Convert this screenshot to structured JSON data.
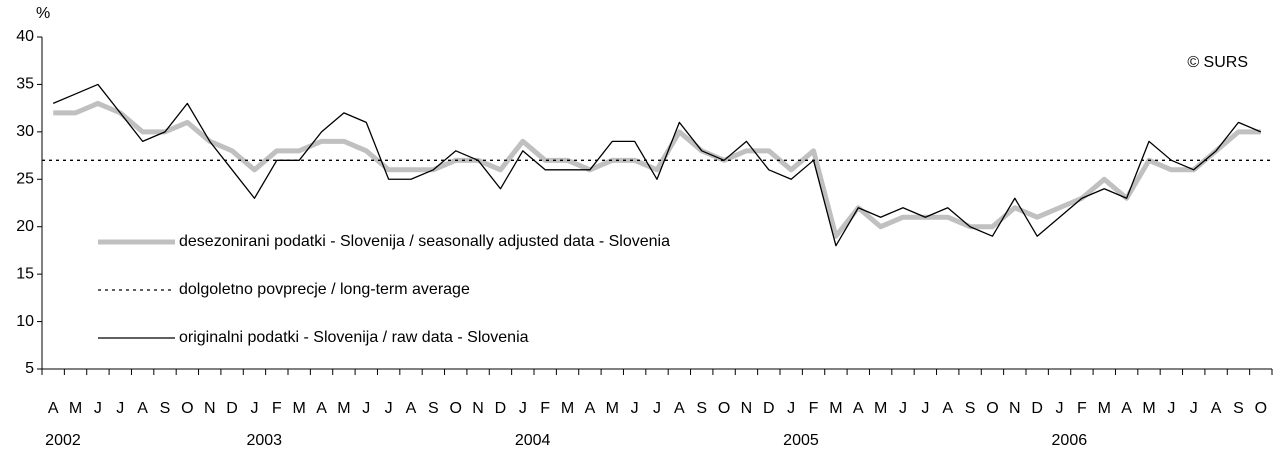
{
  "chart_data": {
    "type": "line",
    "y_unit": "%",
    "copyright": "© SURS",
    "categories": [
      "A",
      "M",
      "J",
      "J",
      "A",
      "S",
      "O",
      "N",
      "D",
      "J",
      "F",
      "M",
      "A",
      "M",
      "J",
      "J",
      "A",
      "S",
      "O",
      "N",
      "D",
      "J",
      "F",
      "M",
      "A",
      "M",
      "J",
      "J",
      "A",
      "S",
      "O",
      "N",
      "D",
      "J",
      "F",
      "M",
      "A",
      "M",
      "J",
      "J",
      "A",
      "S",
      "O",
      "N",
      "D",
      "J",
      "F",
      "M",
      "A",
      "M",
      "J",
      "J",
      "A",
      "S",
      "O"
    ],
    "years": [
      {
        "label": "2002",
        "at": 0
      },
      {
        "label": "2003",
        "at": 9
      },
      {
        "label": "2004",
        "at": 21
      },
      {
        "label": "2005",
        "at": 33
      },
      {
        "label": "2006",
        "at": 45
      }
    ],
    "series": [
      {
        "name": "desezonirani podatki - Slovenija / seasonally adjusted data - Slovenia",
        "color": "#c0c0c0",
        "style": "thick",
        "values": [
          32,
          32,
          33,
          32,
          30,
          30,
          31,
          29,
          28,
          26,
          28,
          28,
          29,
          29,
          28,
          26,
          26,
          26,
          27,
          27,
          26,
          29,
          27,
          27,
          26,
          27,
          27,
          26,
          30,
          28,
          27,
          28,
          28,
          26,
          28,
          19,
          22,
          20,
          21,
          21,
          21,
          20,
          20,
          22,
          21,
          22,
          23,
          25,
          23,
          27,
          26,
          26,
          28,
          30,
          30
        ]
      },
      {
        "name": "dolgoletno povprecje / long-term average",
        "color": "#000000",
        "style": "dotted",
        "value": 27
      },
      {
        "name": "originalni podatki - Slovenija / raw data - Slovenia",
        "color": "#000000",
        "style": "thin",
        "values": [
          33,
          34,
          35,
          32,
          29,
          30,
          33,
          29,
          26,
          23,
          27,
          27,
          30,
          32,
          31,
          25,
          25,
          26,
          28,
          27,
          24,
          28,
          26,
          26,
          26,
          29,
          29,
          25,
          31,
          28,
          27,
          29,
          26,
          25,
          27,
          18,
          22,
          21,
          22,
          21,
          22,
          20,
          19,
          23,
          19,
          21,
          23,
          24,
          23,
          29,
          27,
          26,
          28,
          31,
          30
        ]
      }
    ],
    "ylim": [
      5,
      40
    ],
    "yticks": [
      5,
      10,
      15,
      20,
      25,
      30,
      35,
      40
    ]
  }
}
